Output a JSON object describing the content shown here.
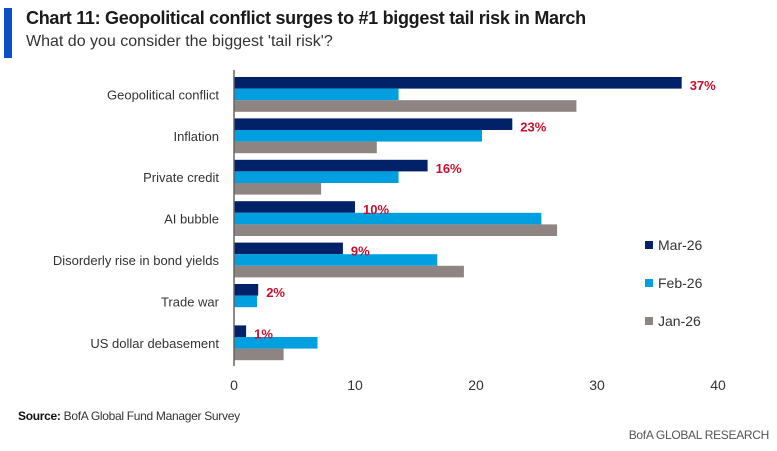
{
  "header": {
    "title": "Chart 11: Geopolitical conflict surges to #1 biggest tail risk in March",
    "subtitle": "What do you consider the biggest 'tail risk'?"
  },
  "footer": {
    "source_label": "Source:",
    "source_text": "BofA Global Fund Manager Survey",
    "brand": "BofA GLOBAL RESEARCH"
  },
  "chart_data": {
    "type": "bar",
    "orientation": "horizontal",
    "title": "Chart 11: Geopolitical conflict surges to #1 biggest tail risk in March",
    "subtitle": "What do you consider the biggest 'tail risk'?",
    "xlabel": "",
    "ylabel": "",
    "xlim": [
      0,
      40
    ],
    "xticks": [
      0,
      10,
      20,
      30,
      40
    ],
    "grid": false,
    "legend_position": "right",
    "categories": [
      "Geopolitical conflict",
      "Inflation",
      "Private credit",
      "AI bubble",
      "Disorderly rise in bond yields",
      "Trade war",
      "US dollar debasement"
    ],
    "series": [
      {
        "name": "Mar-26",
        "color": "#012169",
        "values": [
          37,
          23,
          16,
          10,
          9,
          2,
          1
        ]
      },
      {
        "name": "Feb-26",
        "color": "#009fdf",
        "values": [
          13.6,
          20.5,
          13.6,
          25.4,
          16.8,
          1.9,
          6.9
        ]
      },
      {
        "name": "Jan-26",
        "color": "#8e8482",
        "values": [
          28.3,
          11.8,
          7.2,
          26.7,
          19.0,
          0,
          4.1
        ]
      }
    ],
    "data_labels": [
      "37%",
      "23%",
      "16%",
      "10%",
      "9%",
      "2%",
      "1%"
    ],
    "data_label_color": "#c8102e"
  }
}
